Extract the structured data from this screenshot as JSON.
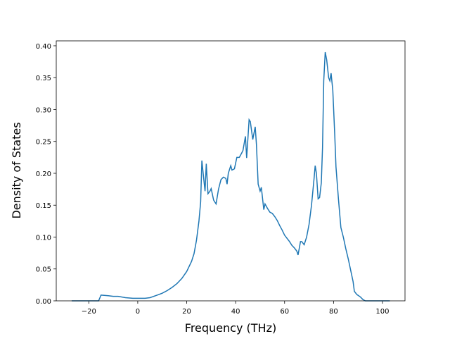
{
  "chart_data": {
    "type": "line",
    "xlabel": "Frequency (THz)",
    "ylabel": "Density of States",
    "x": [
      -27,
      -16,
      -15,
      -12,
      -10,
      -8,
      -5,
      -2,
      0,
      3,
      5,
      8,
      10,
      12,
      14,
      16,
      18,
      20,
      22,
      23,
      24,
      25,
      25.7,
      26.2,
      27,
      27.5,
      28,
      28.7,
      29.5,
      30,
      31,
      32,
      33,
      34,
      35,
      36,
      36.5,
      37,
      38,
      38.5,
      39.5,
      40.5,
      41.5,
      42.5,
      43,
      44,
      44.5,
      45.5,
      46,
      47,
      48,
      48.5,
      49.2,
      50,
      50.5,
      51.5,
      52,
      53,
      54,
      55,
      56,
      57,
      58,
      59,
      60,
      61,
      62,
      63,
      64,
      65,
      65.5,
      66.5,
      67,
      68,
      69,
      70,
      71,
      72,
      72.5,
      73,
      73.7,
      74.3,
      75,
      75.5,
      76,
      76.6,
      77.2,
      78,
      78.5,
      79,
      79.7,
      80.5,
      81,
      82,
      83,
      84,
      85,
      86,
      87,
      88,
      88.5,
      89.5,
      91,
      92,
      93,
      103
    ],
    "series": [
      {
        "color": "#1f77b4",
        "values": [
          0,
          0,
          0.009,
          0.008,
          0.007,
          0.007,
          0.005,
          0.004,
          0.004,
          0.004,
          0.005,
          0.009,
          0.012,
          0.016,
          0.021,
          0.027,
          0.035,
          0.046,
          0.062,
          0.074,
          0.095,
          0.125,
          0.155,
          0.22,
          0.19,
          0.172,
          0.215,
          0.168,
          0.172,
          0.176,
          0.158,
          0.152,
          0.175,
          0.19,
          0.194,
          0.192,
          0.183,
          0.2,
          0.212,
          0.205,
          0.207,
          0.225,
          0.225,
          0.232,
          0.236,
          0.258,
          0.224,
          0.284,
          0.281,
          0.253,
          0.273,
          0.245,
          0.183,
          0.172,
          0.178,
          0.143,
          0.152,
          0.145,
          0.139,
          0.137,
          0.132,
          0.126,
          0.118,
          0.111,
          0.103,
          0.098,
          0.093,
          0.087,
          0.083,
          0.078,
          0.072,
          0.093,
          0.093,
          0.088,
          0.1,
          0.12,
          0.15,
          0.19,
          0.212,
          0.2,
          0.16,
          0.162,
          0.185,
          0.24,
          0.345,
          0.39,
          0.378,
          0.35,
          0.345,
          0.357,
          0.33,
          0.26,
          0.21,
          0.16,
          0.115,
          0.1,
          0.082,
          0.066,
          0.048,
          0.03,
          0.015,
          0.01,
          0.006,
          0.002,
          0,
          0
        ]
      }
    ],
    "xlim": [
      -33.3,
      109.2
    ],
    "xticks": [
      {
        "value": -20,
        "label": "−20"
      },
      0,
      20,
      40,
      60,
      80,
      100
    ],
    "ylim": [
      0,
      0.4077
    ],
    "yticks": [
      {
        "value": 0,
        "label": "0.00"
      },
      {
        "value": 0.05,
        "label": "0.05"
      },
      {
        "value": 0.1,
        "label": "0.10"
      },
      {
        "value": 0.15,
        "label": "0.15"
      },
      {
        "value": 0.2,
        "label": "0.20"
      },
      {
        "value": 0.25,
        "label": "0.25"
      },
      {
        "value": 0.3,
        "label": "0.30"
      },
      {
        "value": 0.35,
        "label": "0.35"
      },
      {
        "value": 0.4,
        "label": "0.40"
      }
    ]
  }
}
